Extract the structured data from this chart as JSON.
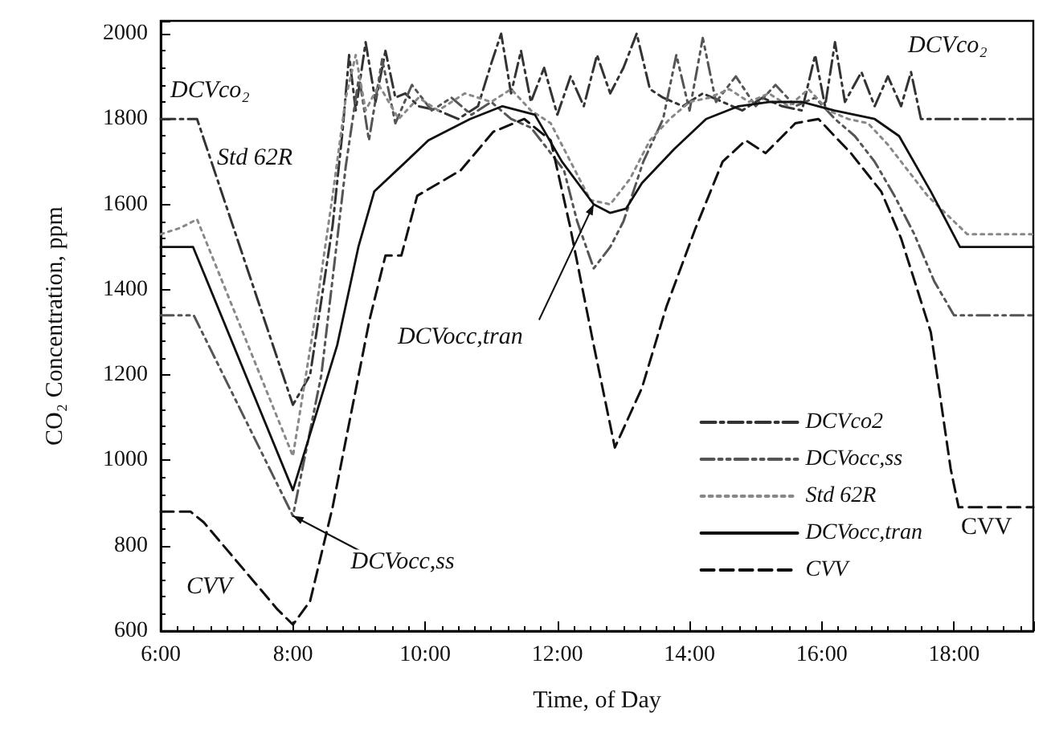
{
  "chart_data": {
    "type": "line",
    "xlabel": "Time, of Day",
    "ylabel": "CO₂ Concentration, ppm",
    "xlim": [
      6,
      19.2
    ],
    "ylim": [
      600,
      2030
    ],
    "xticks": [
      {
        "value": 6,
        "label": "6:00"
      },
      {
        "value": 8,
        "label": "8:00"
      },
      {
        "value": 10,
        "label": "10:00"
      },
      {
        "value": 12,
        "label": "12:00"
      },
      {
        "value": 14,
        "label": "14:00"
      },
      {
        "value": 16,
        "label": "16:00"
      },
      {
        "value": 18,
        "label": "18:00"
      }
    ],
    "yticks": [
      600,
      800,
      1000,
      1200,
      1400,
      1600,
      1800,
      2000
    ],
    "grid": false,
    "legend": "bottom right",
    "marker": "none",
    "series": [
      {
        "name": "DCVco2",
        "color": "#333333",
        "line_style": "dashed",
        "x": [
          6.0,
          6.55,
          8.0,
          8.26,
          8.6,
          8.75,
          8.85,
          8.95,
          9.1,
          9.25,
          9.4,
          9.55,
          9.7,
          9.9,
          10.2,
          10.5,
          10.8,
          11.0,
          11.15,
          11.3,
          11.45,
          11.6,
          11.8,
          12.0,
          12.2,
          12.4,
          12.6,
          12.8,
          13.0,
          13.2,
          13.4,
          13.6,
          13.9,
          14.2,
          14.5,
          14.8,
          15.1,
          15.4,
          15.7,
          15.9,
          16.05,
          16.2,
          16.35,
          16.6,
          16.8,
          17.0,
          17.2,
          17.35,
          17.5,
          19.2
        ],
        "values": [
          1800,
          1800,
          1130,
          1200,
          1550,
          1770,
          1950,
          1820,
          1980,
          1840,
          1960,
          1850,
          1860,
          1830,
          1820,
          1800,
          1830,
          1930,
          2000,
          1860,
          1960,
          1840,
          1920,
          1810,
          1900,
          1830,
          1950,
          1860,
          1920,
          2000,
          1870,
          1850,
          1830,
          1860,
          1840,
          1820,
          1850,
          1830,
          1820,
          1950,
          1830,
          1980,
          1840,
          1910,
          1830,
          1900,
          1830,
          1910,
          1800,
          1800
        ]
      },
      {
        "name": "DCVocc,ss",
        "color": "#555555",
        "line_style": "dashed",
        "x": [
          6.0,
          6.5,
          8.0,
          8.43,
          8.8,
          9.0,
          9.15,
          9.35,
          9.55,
          9.8,
          10.1,
          10.4,
          10.7,
          11.0,
          11.3,
          11.6,
          11.9,
          12.1,
          12.3,
          12.55,
          12.8,
          13.0,
          13.3,
          13.6,
          13.8,
          14.0,
          14.2,
          14.4,
          14.7,
          15.0,
          15.3,
          15.6,
          15.9,
          16.2,
          16.5,
          16.8,
          17.1,
          17.4,
          17.7,
          18.0,
          19.2
        ],
        "values": [
          1340,
          1340,
          870,
          1200,
          1690,
          1900,
          1750,
          1940,
          1790,
          1880,
          1820,
          1850,
          1810,
          1840,
          1800,
          1780,
          1720,
          1680,
          1560,
          1450,
          1500,
          1560,
          1700,
          1800,
          1950,
          1820,
          1990,
          1840,
          1900,
          1830,
          1880,
          1830,
          1850,
          1800,
          1760,
          1700,
          1620,
          1530,
          1420,
          1340,
          1340
        ]
      },
      {
        "name": "Std 62R",
        "color": "#888888",
        "line_style": "dotted",
        "x": [
          6.0,
          6.3,
          6.55,
          8.0,
          8.3,
          8.6,
          8.8,
          8.95,
          9.1,
          9.3,
          9.6,
          9.9,
          10.2,
          10.6,
          11.0,
          11.3,
          11.6,
          11.9,
          12.2,
          12.5,
          12.8,
          13.1,
          13.4,
          13.7,
          14.0,
          14.3,
          14.6,
          14.9,
          15.2,
          15.5,
          15.8,
          16.1,
          16.4,
          16.7,
          17.0,
          17.3,
          17.6,
          18.0,
          18.2,
          19.2
        ],
        "values": [
          1530,
          1545,
          1565,
          1010,
          1300,
          1620,
          1850,
          1950,
          1820,
          1880,
          1800,
          1850,
          1820,
          1860,
          1840,
          1870,
          1820,
          1790,
          1700,
          1610,
          1600,
          1660,
          1750,
          1800,
          1840,
          1850,
          1870,
          1840,
          1860,
          1830,
          1870,
          1820,
          1800,
          1790,
          1740,
          1680,
          1620,
          1560,
          1530,
          1530
        ]
      },
      {
        "name": "DCVocc,tran",
        "color": "#111111",
        "line_style": "solid",
        "x": [
          6.0,
          6.49,
          8.0,
          8.67,
          8.99,
          9.23,
          9.71,
          10.05,
          10.68,
          11.17,
          11.66,
          12.07,
          12.55,
          12.8,
          13.04,
          13.28,
          13.77,
          14.25,
          14.74,
          15.22,
          15.7,
          16.19,
          16.8,
          17.17,
          17.65,
          18.09,
          19.2
        ],
        "values": [
          1500,
          1500,
          930,
          1270,
          1500,
          1630,
          1700,
          1750,
          1800,
          1830,
          1810,
          1700,
          1600,
          1580,
          1590,
          1650,
          1730,
          1800,
          1830,
          1840,
          1840,
          1820,
          1800,
          1760,
          1630,
          1500,
          1500
        ]
      },
      {
        "name": "CVV",
        "color": "#111111",
        "line_style": "dashed",
        "x": [
          6.0,
          6.45,
          6.65,
          7.77,
          8.0,
          8.26,
          8.6,
          9.16,
          9.4,
          9.64,
          9.88,
          10.1,
          10.54,
          11.03,
          11.5,
          11.9,
          12.19,
          12.55,
          12.87,
          13.28,
          13.65,
          14.08,
          14.5,
          14.85,
          15.15,
          15.6,
          15.95,
          16.44,
          16.9,
          17.2,
          17.65,
          17.95,
          18.07,
          19.2
        ],
        "values": [
          880,
          880,
          855,
          650,
          615,
          670,
          890,
          1330,
          1480,
          1480,
          1620,
          1640,
          1680,
          1770,
          1800,
          1750,
          1550,
          1270,
          1030,
          1170,
          1360,
          1540,
          1700,
          1750,
          1720,
          1790,
          1800,
          1720,
          1630,
          1520,
          1300,
          980,
          890,
          890
        ]
      }
    ],
    "annotations": [
      "DCVco₂",
      "Std 62R",
      {
        "text": "DCVocc,tran",
        "x": 12.55,
        "y": 1600
      },
      {
        "text": "DCVocc,ss",
        "x": 8.0,
        "y": 870
      },
      "CVV",
      "DCVco₂",
      "CVV"
    ]
  }
}
